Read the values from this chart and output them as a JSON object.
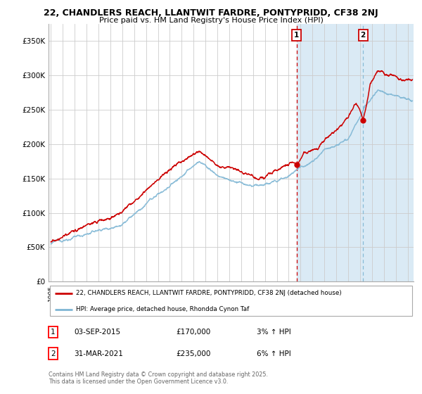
{
  "title_line1": "22, CHANDLERS REACH, LLANTWIT FARDRE, PONTYPRIDD, CF38 2NJ",
  "title_line2": "Price paid vs. HM Land Registry's House Price Index (HPI)",
  "ylabel_ticks": [
    "£0",
    "£50K",
    "£100K",
    "£150K",
    "£200K",
    "£250K",
    "£300K",
    "£350K"
  ],
  "ytick_vals": [
    0,
    50000,
    100000,
    150000,
    200000,
    250000,
    300000,
    350000
  ],
  "ylim": [
    0,
    375000
  ],
  "xlim_start": 1994.8,
  "xlim_end": 2025.5,
  "red_line_color": "#cc0000",
  "blue_line_color": "#7eb6d4",
  "background_color": "#ffffff",
  "shaded_region_color": "#daeaf5",
  "vline1_date": 2015.67,
  "vline2_date": 2021.25,
  "marker1_val": 170000,
  "marker2_val": 235000,
  "annotation1_box": "1",
  "annotation2_box": "2",
  "legend_line1": "22, CHANDLERS REACH, LLANTWIT FARDRE, PONTYPRIDD, CF38 2NJ (detached house)",
  "legend_line2": "HPI: Average price, detached house, Rhondda Cynon Taf",
  "table_row1": [
    "1",
    "03-SEP-2015",
    "£170,000",
    "3% ↑ HPI"
  ],
  "table_row2": [
    "2",
    "31-MAR-2021",
    "£235,000",
    "6% ↑ HPI"
  ],
  "footnote": "Contains HM Land Registry data © Crown copyright and database right 2025.\nThis data is licensed under the Open Government Licence v3.0.",
  "grid_color": "#cccccc",
  "title_fontsize": 9.0,
  "subtitle_fontsize": 8.0,
  "axis_fontsize": 7.5,
  "xtick_fontsize": 6.5
}
